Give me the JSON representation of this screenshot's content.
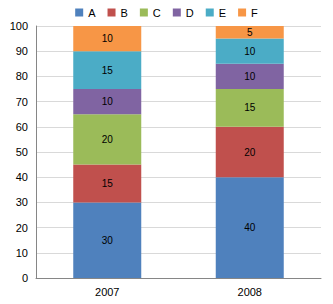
{
  "chart_data": {
    "type": "bar",
    "stacked": true,
    "data_labels": true,
    "grid": true,
    "legend": "top",
    "categories": [
      "2007",
      "2008"
    ],
    "series": [
      {
        "name": "A",
        "color": "#4f81bd",
        "values": [
          30,
          40
        ]
      },
      {
        "name": "B",
        "color": "#c0504d",
        "values": [
          15,
          20
        ]
      },
      {
        "name": "C",
        "color": "#9bbb59",
        "values": [
          20,
          15
        ]
      },
      {
        "name": "D",
        "color": "#8064a2",
        "values": [
          10,
          10
        ]
      },
      {
        "name": "E",
        "color": "#4bacc6",
        "values": [
          15,
          10
        ]
      },
      {
        "name": "F",
        "color": "#f79646",
        "values": [
          10,
          5
        ]
      }
    ],
    "ylim": [
      0,
      100
    ],
    "yticks": [
      0,
      10,
      20,
      30,
      40,
      50,
      60,
      70,
      80,
      90,
      100
    ]
  }
}
